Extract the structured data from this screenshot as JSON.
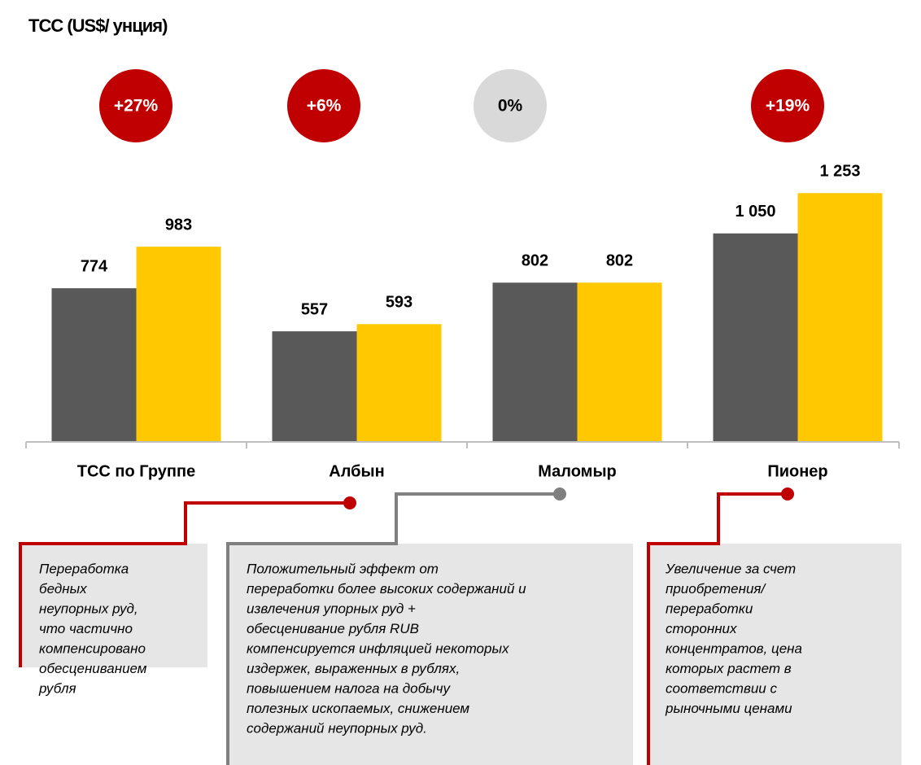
{
  "chart_data": {
    "type": "bar",
    "title": "ТСС (US$/ унция)",
    "categories": [
      "ТСС по Группе",
      "Албын",
      "Маломыр",
      "Пионер"
    ],
    "series": [
      {
        "color": "#595959",
        "values": [
          774,
          557,
          802,
          1050
        ],
        "value_labels": [
          "774",
          "557",
          "802",
          "1 050"
        ]
      },
      {
        "color": "#ffc800",
        "values": [
          983,
          593,
          802,
          1253
        ],
        "value_labels": [
          "983",
          "593",
          "802",
          "1 253"
        ]
      }
    ],
    "ylim": [
      0,
      2000
    ],
    "changes": [
      {
        "label": "+27%",
        "color": "#c00000",
        "text_color": "#ffffff"
      },
      {
        "label": "+6%",
        "color": "#c00000",
        "text_color": "#ffffff"
      },
      {
        "label": "0%",
        "color": "#d9d9d9",
        "text_color": "#000000"
      },
      {
        "label": "+19%",
        "color": "#c00000",
        "text_color": "#ffffff"
      }
    ],
    "notes": [
      {
        "color": "#c00000",
        "lines": [
          "Переработка",
          "бедных",
          "неупорных руд,",
          "что частично",
          "компенсировано",
          "обесцениванием",
          "рубля"
        ]
      },
      {
        "color": "#808080",
        "lines": [
          "Положительный эффект от",
          "переработки более высоких содержаний и",
          "извлечения упорных руд +",
          "обесценивание рубля RUB",
          "компенсируется инфляцией некоторых",
          "издержек, выраженных в рублях,",
          "повышением налога на добычу",
          "полезных ископаемых, снижением",
          "содержаний неупорных руд."
        ]
      },
      {
        "color": "#c00000",
        "lines": [
          "Увеличение за счет",
          "приобретения/",
          "переработки",
          "сторонних",
          "концентратов, цена",
          "которых растет в",
          "соответствии с",
          "рыночными ценами"
        ]
      }
    ]
  }
}
